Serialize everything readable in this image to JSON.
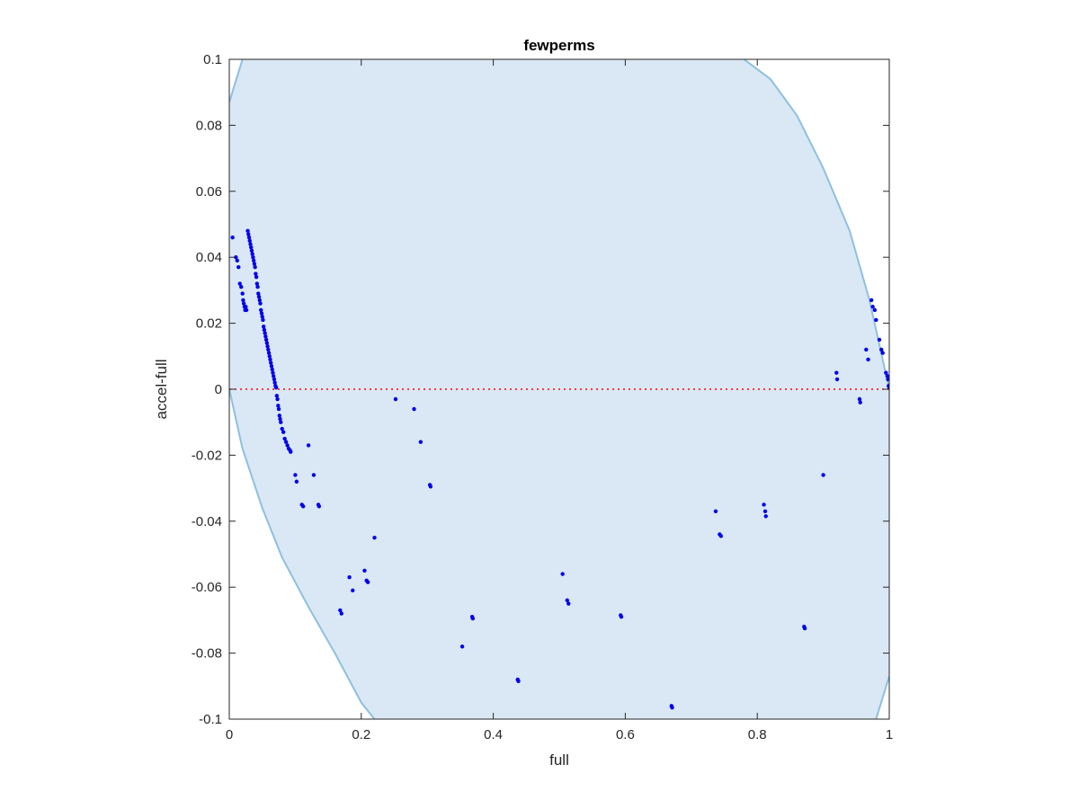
{
  "chart_data": {
    "type": "scatter",
    "title": "fewperms",
    "xlabel": "full",
    "ylabel": "accel-full",
    "xlim": [
      0,
      1
    ],
    "ylim": [
      -0.1,
      0.1
    ],
    "xticks": [
      0,
      0.2,
      0.4,
      0.6,
      0.8,
      1
    ],
    "xtick_labels": [
      "0",
      "0.2",
      "0.4",
      "0.6",
      "0.8",
      "1"
    ],
    "yticks": [
      0.1,
      0.08,
      0.06,
      0.04,
      0.02,
      0,
      -0.02,
      -0.04,
      -0.06,
      -0.08,
      -0.1
    ],
    "ytick_labels": [
      "0.1",
      "0.08",
      "0.06",
      "0.04",
      "0.02",
      "0",
      "-0.02",
      "-0.04",
      "-0.06",
      "-0.08",
      "-0.1"
    ],
    "grid": false,
    "colors": {
      "points": "#0000ee",
      "region_fill": "#d9e8f4",
      "region_edge": "#8ec0e0",
      "zero_line": "#ff0000"
    },
    "reference_line": {
      "y": 0,
      "style": "dotted"
    },
    "region": {
      "description": "feasible band bounded by curves y = -x(1-x) style limits",
      "upper_left_curve": [
        [
          0,
          0.087
        ],
        [
          0.02,
          0.1
        ]
      ],
      "upper_right_curve": [
        [
          0.78,
          0.1
        ],
        [
          0.82,
          0.094
        ],
        [
          0.86,
          0.083
        ],
        [
          0.9,
          0.067
        ],
        [
          0.94,
          0.048
        ],
        [
          0.97,
          0.027
        ],
        [
          1.0,
          0.0
        ]
      ],
      "lower_left_curve": [
        [
          0.0,
          0.0
        ],
        [
          0.02,
          -0.018
        ],
        [
          0.05,
          -0.036
        ],
        [
          0.08,
          -0.051
        ],
        [
          0.12,
          -0.066
        ],
        [
          0.16,
          -0.08
        ],
        [
          0.2,
          -0.095
        ],
        [
          0.22,
          -0.1
        ]
      ],
      "lower_right_curve": [
        [
          0.98,
          -0.1
        ],
        [
          1.0,
          -0.087
        ]
      ]
    },
    "series": [
      {
        "x": [
          0.005,
          0.01,
          0.012,
          0.014,
          0.016,
          0.018,
          0.02,
          0.021,
          0.022,
          0.023,
          0.024,
          0.025,
          0.026,
          0.028,
          0.029,
          0.03,
          0.031,
          0.032,
          0.033,
          0.034,
          0.035,
          0.036,
          0.037,
          0.038,
          0.039,
          0.04,
          0.041,
          0.042,
          0.043,
          0.044,
          0.045,
          0.046,
          0.047,
          0.048,
          0.049,
          0.05,
          0.051,
          0.052,
          0.053,
          0.054,
          0.055,
          0.056,
          0.057,
          0.058,
          0.059,
          0.06,
          0.061,
          0.062,
          0.063,
          0.064,
          0.065,
          0.066,
          0.067,
          0.068,
          0.069,
          0.07,
          0.071,
          0.072,
          0.073,
          0.074,
          0.075,
          0.076,
          0.077,
          0.078,
          0.08,
          0.082,
          0.084,
          0.086,
          0.088,
          0.09,
          0.092,
          0.093,
          0.1,
          0.102,
          0.11,
          0.112,
          0.12,
          0.128,
          0.135,
          0.136,
          0.168,
          0.17,
          0.182,
          0.187,
          0.205,
          0.208,
          0.21,
          0.22,
          0.252,
          0.28,
          0.29,
          0.304,
          0.305,
          0.353,
          0.368,
          0.369,
          0.437,
          0.438,
          0.505,
          0.512,
          0.514,
          0.593,
          0.594,
          0.67,
          0.671,
          0.737,
          0.743,
          0.745,
          0.81,
          0.812,
          0.813,
          0.871,
          0.872,
          0.9,
          0.92,
          0.921,
          0.955,
          0.956,
          0.965,
          0.968,
          0.973,
          0.975,
          0.978,
          0.98,
          0.985,
          0.988,
          0.99,
          0.995,
          0.997,
          0.998,
          0.999,
          1.0
        ],
        "y": [
          0.046,
          0.04,
          0.039,
          0.037,
          0.032,
          0.031,
          0.029,
          0.027,
          0.026,
          0.025,
          0.024,
          0.025,
          0.024,
          0.048,
          0.047,
          0.046,
          0.045,
          0.044,
          0.043,
          0.042,
          0.041,
          0.04,
          0.039,
          0.038,
          0.037,
          0.035,
          0.034,
          0.032,
          0.031,
          0.029,
          0.028,
          0.027,
          0.026,
          0.024,
          0.023,
          0.022,
          0.021,
          0.019,
          0.018,
          0.017,
          0.016,
          0.015,
          0.014,
          0.013,
          0.012,
          0.011,
          0.01,
          0.009,
          0.008,
          0.007,
          0.006,
          0.005,
          0.004,
          0.003,
          0.002,
          0.001,
          0.0005,
          -0.002,
          -0.003,
          -0.005,
          -0.006,
          -0.008,
          -0.009,
          -0.01,
          -0.012,
          -0.013,
          -0.015,
          -0.016,
          -0.017,
          -0.018,
          -0.0185,
          -0.019,
          -0.026,
          -0.028,
          -0.035,
          -0.0355,
          -0.017,
          -0.026,
          -0.035,
          -0.0355,
          -0.067,
          -0.068,
          -0.057,
          -0.061,
          -0.055,
          -0.058,
          -0.0585,
          -0.045,
          -0.003,
          -0.006,
          -0.016,
          -0.029,
          -0.0295,
          -0.078,
          -0.069,
          -0.0695,
          -0.088,
          -0.0885,
          -0.056,
          -0.064,
          -0.065,
          -0.0685,
          -0.069,
          -0.096,
          -0.0965,
          -0.037,
          -0.044,
          -0.0445,
          -0.035,
          -0.037,
          -0.0385,
          -0.072,
          -0.0725,
          -0.026,
          0.005,
          0.003,
          -0.003,
          -0.004,
          0.012,
          0.009,
          0.027,
          0.025,
          0.024,
          0.021,
          0.015,
          0.012,
          0.011,
          0.005,
          0.004,
          0.003,
          0.001,
          0.0005
        ]
      }
    ]
  }
}
